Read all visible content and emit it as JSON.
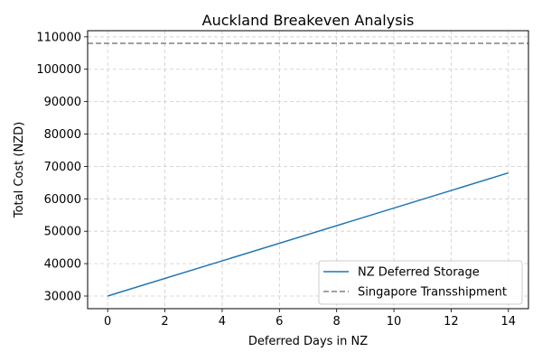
{
  "chart_data": {
    "type": "line",
    "title": "Auckland Breakeven Analysis",
    "xlabel": "Deferred Days in NZ",
    "ylabel": "Total Cost (NZD)",
    "xlim": [
      -0.7,
      14.7
    ],
    "ylim": [
      26100,
      111900
    ],
    "xticks": [
      0,
      2,
      4,
      6,
      8,
      10,
      12,
      14
    ],
    "yticks": [
      30000,
      40000,
      50000,
      60000,
      70000,
      80000,
      90000,
      100000,
      110000
    ],
    "grid": true,
    "legend_position": "lower-right",
    "series": [
      {
        "name": "NZ Deferred Storage",
        "style": "solid",
        "color": "#1f77b4",
        "x": [
          0,
          14
        ],
        "y": [
          30000,
          68000
        ]
      },
      {
        "name": "Singapore Transshipment",
        "style": "dashed",
        "color": "#808080",
        "x": [
          -0.7,
          14.7
        ],
        "y": [
          108000,
          108000
        ]
      }
    ]
  }
}
